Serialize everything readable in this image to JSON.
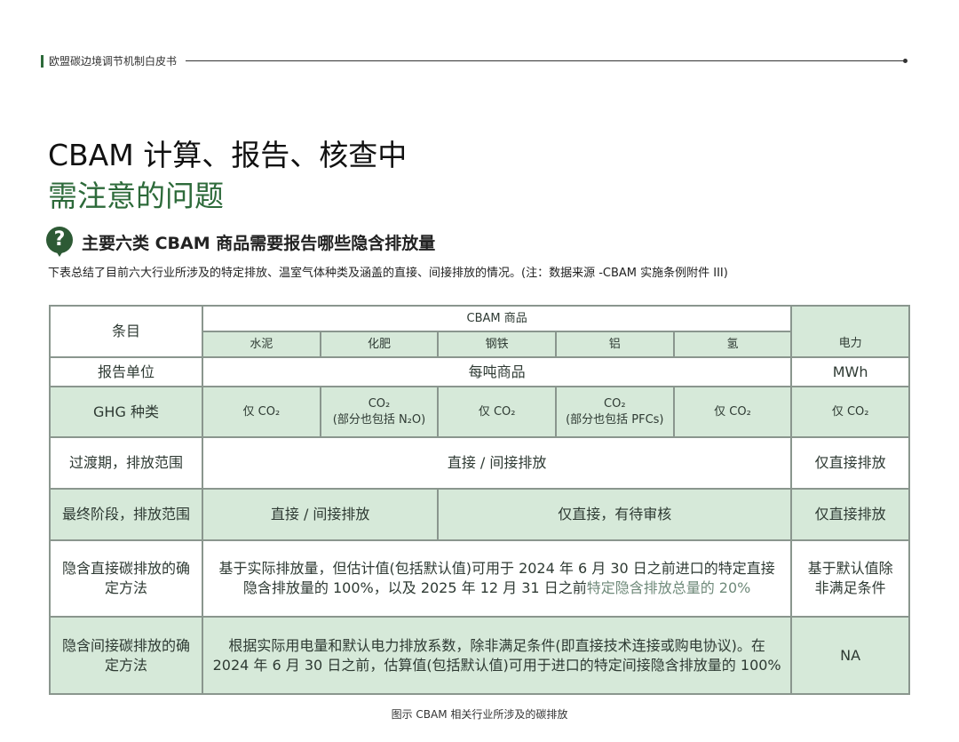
{
  "header": {
    "running_title": "欧盟碳边境调节机制白皮书"
  },
  "title": {
    "line1": "CBAM 计算、报告、核查中",
    "line2": "需注意的问题"
  },
  "section": {
    "icon": "question-icon",
    "heading": "主要六类 CBAM 商品需要报告哪些隐含排放量",
    "note": "下表总结了目前六大行业所涉及的特定排放、温室气体种类及涵盖的直接、间接排放的情况。(注：数据来源 -CBAM 实施条例附件 III)"
  },
  "table": {
    "item_header": "条目",
    "goods_header": "CBAM 商品",
    "goods": [
      "水泥",
      "化肥",
      "钢铁",
      "铝",
      "氢",
      "电力"
    ],
    "rows": {
      "unit": {
        "label": "报告单位",
        "goods": "每吨商品",
        "power": "MWh"
      },
      "ghg": {
        "label": "GHG 种类",
        "values": [
          "仅 CO₂",
          "CO₂\n(部分也包括 N₂O)",
          "仅 CO₂",
          "CO₂\n(部分也包括 PFCs)",
          "仅 CO₂",
          "仅 CO₂"
        ]
      },
      "transition": {
        "label": "过渡期，排放范围",
        "goods": "直接 / 间接排放",
        "power": "仅直接排放"
      },
      "final": {
        "label": "最终阶段，排放范围",
        "a": "直接 / 间接排放",
        "b": "仅直接，有待审核",
        "power": "仅直接排放"
      },
      "direct": {
        "label": "隐含直接碳排放的确定方法",
        "text": "基于实际排放量，但估计值(包括默认值)可用于 2024 年 6 月 30 日之前进口的特定直接隐含排放量的 100%，以及 2025 年 12 月 31 日之前",
        "text_faded": "特定隐含排放总量的 20%",
        "power": "基于默认值除非满足条件"
      },
      "indirect": {
        "label": "隐含间接碳排放的确定方法",
        "text": "根据实际用电量和默认电力排放系数，除非满足条件(即直接技术连接或购电协议)。在 2024 年 6 月 30 日之前，估算值(包括默认值)可用于进口的特定间接隐含排放量的 100%",
        "power": "NA"
      }
    }
  },
  "caption": "图示 CBAM 相关行业所涉及的碳排放",
  "colors": {
    "accent": "#2d6a3a",
    "cell_fill": "#d6e9d9"
  }
}
